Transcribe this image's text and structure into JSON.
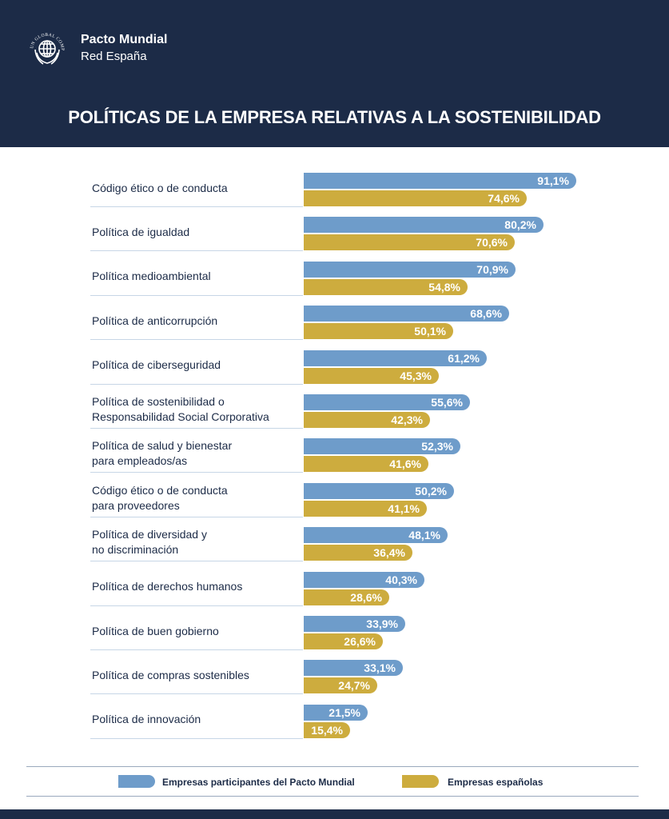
{
  "header": {
    "org_name": "Pacto Mundial",
    "org_sub": "Red España",
    "logo_icon": "un-global-compact-globe-icon",
    "logo_text": "UN GLOBAL COMPACT"
  },
  "colors": {
    "header_bg": "#1c2b47",
    "series_participants": "#6e9cca",
    "series_spanish": "#cdac3e"
  },
  "chart_data": {
    "type": "bar",
    "orientation": "horizontal",
    "title": "POLÍTICAS DE LA EMPRESA RELATIVAS A LA SOSTENIBILIDAD",
    "xlabel": "",
    "ylabel": "",
    "value_suffix": "%",
    "decimal_separator": ",",
    "xlim": [
      0,
      100
    ],
    "categories": [
      [
        "Código ético o de conducta"
      ],
      [
        "Política de igualdad"
      ],
      [
        "Política medioambiental"
      ],
      [
        "Política de anticorrupción"
      ],
      [
        "Política de ciberseguridad"
      ],
      [
        "Política de sostenibilidad o",
        "Responsabilidad Social Corporativa"
      ],
      [
        "Política de salud y bienestar",
        "para empleados/as"
      ],
      [
        "Código ético o de conducta",
        "para proveedores"
      ],
      [
        "Política de diversidad y",
        "no discriminación"
      ],
      [
        "Política de derechos humanos"
      ],
      [
        "Política de buen gobierno"
      ],
      [
        "Política de compras sostenibles"
      ],
      [
        "Política de innovación"
      ]
    ],
    "series": [
      {
        "name": "Empresas participantes del Pacto Mundial",
        "color": "#6e9cca",
        "values": [
          91.1,
          80.2,
          70.9,
          68.6,
          61.2,
          55.6,
          52.3,
          50.2,
          48.1,
          40.3,
          33.9,
          33.1,
          21.5
        ]
      },
      {
        "name": "Empresas españolas",
        "color": "#cdac3e",
        "values": [
          74.6,
          70.6,
          54.8,
          50.1,
          45.3,
          42.3,
          41.6,
          41.1,
          36.4,
          28.6,
          26.6,
          24.7,
          15.4
        ]
      }
    ],
    "legend_position": "bottom"
  }
}
